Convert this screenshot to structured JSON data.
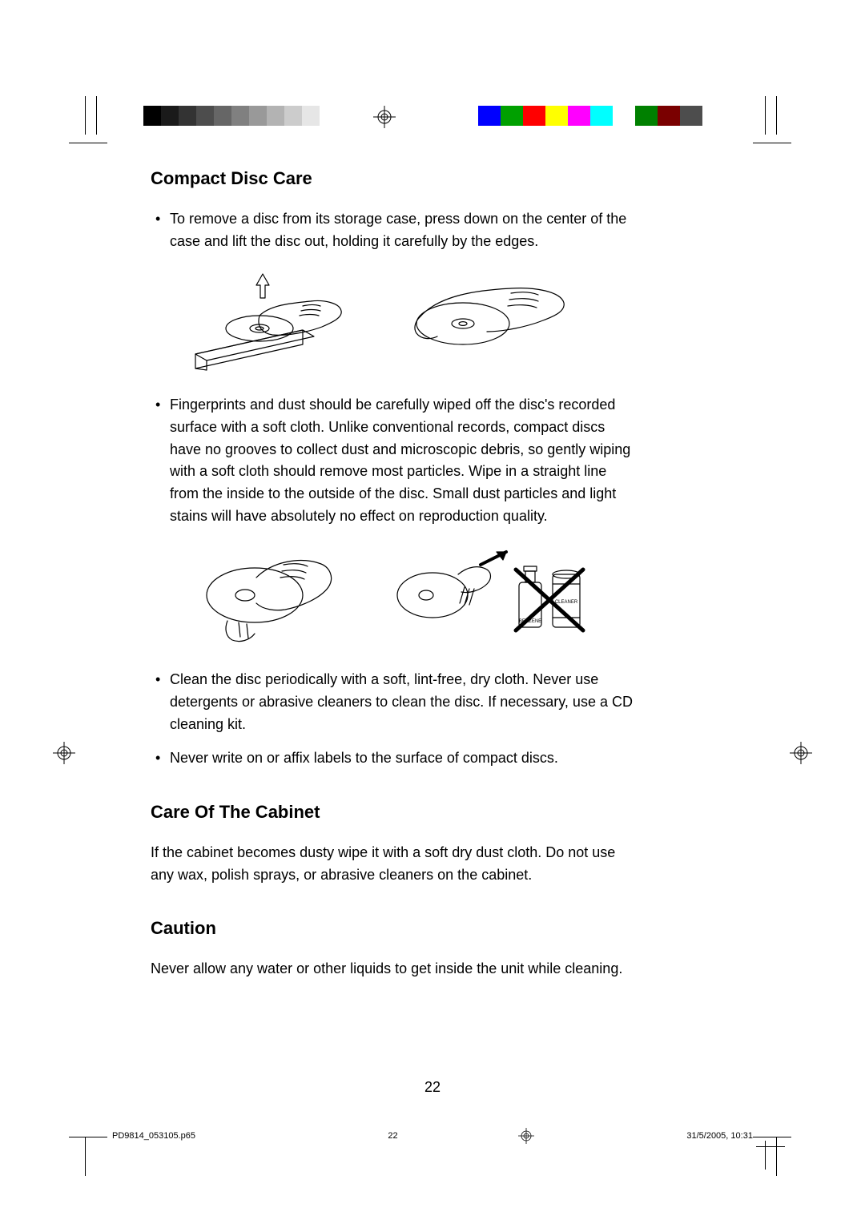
{
  "colorbar": {
    "gray_segments": [
      "#000000",
      "#1a1a1a",
      "#333333",
      "#4d4d4d",
      "#666666",
      "#808080",
      "#999999",
      "#b3b3b3",
      "#cccccc",
      "#e6e6e6",
      "#ffffff"
    ],
    "gray_seg_width": 22,
    "gap_width": 176,
    "color_segments": [
      "#0000ff",
      "#00a000",
      "#ff0000",
      "#ffff00",
      "#ff00ff",
      "#00ffff",
      "#ffffff",
      "#008000",
      "#7a0000",
      "#4d4d4d"
    ],
    "color_seg_width": 28
  },
  "headings": {
    "h1": "Compact Disc Care",
    "h2": "Care Of The Cabinet",
    "h3": "Caution"
  },
  "bullets": {
    "b1": "To remove a disc from its storage case, press down on the center of the case and lift the disc out, holding it carefully by the edges.",
    "b2": "Fingerprints and dust should be carefully wiped off the disc's recorded surface with a soft cloth. Unlike conventional records, compact discs have no grooves to collect dust and microscopic debris, so gently wiping with a soft cloth should remove most particles. Wipe in a straight line from the inside to the outside of the disc. Small dust particles and light stains will have absolutely no effect on reproduction quality.",
    "b3": "Clean the disc periodically with a soft, lint-free, dry cloth. Never use detergents or abrasive cleaners to clean the disc. If necessary, use a CD cleaning kit.",
    "b4": "Never write on or affix labels to the surface of compact discs."
  },
  "paragraphs": {
    "cabinet": "If the cabinet becomes dusty wipe it with a soft dry dust cloth.  Do not use any wax, polish sprays, or abrasive cleaners on the cabinet.",
    "caution": "Never allow any water or other liquids to get inside the unit while cleaning."
  },
  "illustration_labels": {
    "benzene": "BENZENE",
    "cleaner": "CLEANER"
  },
  "page_number": "22",
  "footer": {
    "file": "PD9814_053105.p65",
    "page": "22",
    "timestamp": "31/5/2005, 10:31"
  },
  "style": {
    "heading_color": "#000000",
    "heading_fontsize": 22,
    "body_fontsize": 18,
    "body_color": "#000000",
    "line_height": 1.55,
    "background": "#ffffff",
    "stroke": "#000000",
    "stroke_width": 1.2
  }
}
